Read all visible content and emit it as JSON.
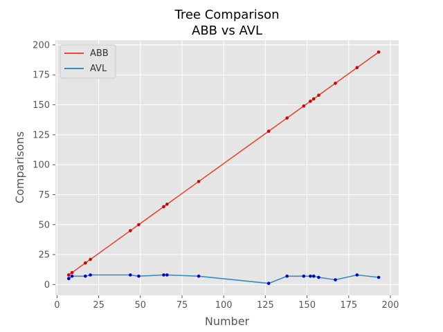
{
  "chart_data": {
    "type": "line",
    "title_line1": "Tree Comparison",
    "title_line2": "ABB vs AVL",
    "xlabel": "Number",
    "ylabel": "Comparisons",
    "xlim": [
      -1,
      205
    ],
    "ylim": [
      -9,
      204
    ],
    "xticks": [
      0,
      25,
      50,
      75,
      100,
      125,
      150,
      175,
      200
    ],
    "yticks": [
      0,
      25,
      50,
      75,
      100,
      125,
      150,
      175,
      200
    ],
    "grid": true,
    "legend_position": "upper-left",
    "series": [
      {
        "name": "ABB",
        "line_color": "#E24A33",
        "marker_color": "#cc0000",
        "points": [
          [
            7,
            8
          ],
          [
            7,
            8
          ],
          [
            9,
            10
          ],
          [
            17,
            18
          ],
          [
            20,
            21
          ],
          [
            44,
            45
          ],
          [
            49,
            50
          ],
          [
            64,
            65
          ],
          [
            66,
            67
          ],
          [
            85,
            86
          ],
          [
            127,
            128
          ],
          [
            138,
            139
          ],
          [
            148,
            149
          ],
          [
            152,
            153
          ],
          [
            154,
            155
          ],
          [
            157,
            158
          ],
          [
            167,
            168
          ],
          [
            180,
            181
          ],
          [
            193,
            194
          ]
        ]
      },
      {
        "name": "AVL",
        "line_color": "#348ABD",
        "marker_color": "#0000cc",
        "points": [
          [
            7,
            5
          ],
          [
            7,
            5
          ],
          [
            9,
            7
          ],
          [
            17,
            7
          ],
          [
            20,
            8
          ],
          [
            44,
            8
          ],
          [
            49,
            7
          ],
          [
            64,
            8
          ],
          [
            66,
            8
          ],
          [
            85,
            7
          ],
          [
            127,
            1
          ],
          [
            138,
            7
          ],
          [
            148,
            7
          ],
          [
            152,
            7
          ],
          [
            154,
            7
          ],
          [
            157,
            6
          ],
          [
            167,
            4
          ],
          [
            180,
            8
          ],
          [
            193,
            6
          ]
        ]
      }
    ]
  }
}
